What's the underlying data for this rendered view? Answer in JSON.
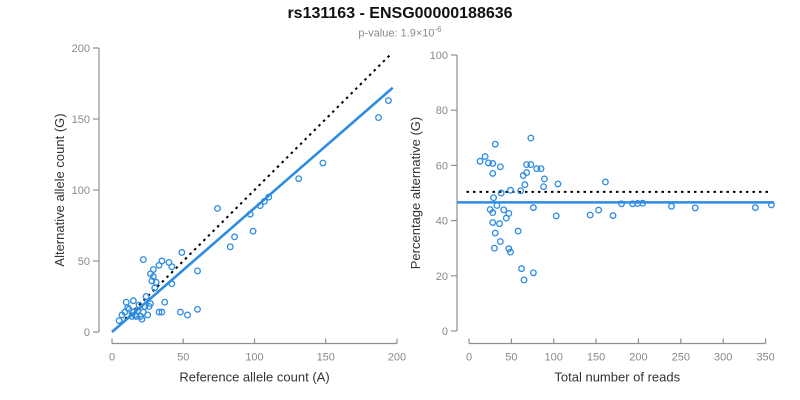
{
  "header": {
    "title": "rs131163 - ENSG00000188636",
    "subtitle_main": "p-value: 1.9×10",
    "subtitle_exp": "-6"
  },
  "colors": {
    "point": "#2E8BE2",
    "fit_line": "#2E8BE2",
    "reference_line": "#000000",
    "axis": "#8f8f8f",
    "tick_label": "#8a8a8a",
    "axis_title": "#333333"
  },
  "chart_data": [
    {
      "type": "scatter",
      "name": "allele-counts",
      "xlabel": "Reference allele count (A)",
      "ylabel": "Alternative allele count (G)",
      "xlim": [
        0,
        200
      ],
      "ylim": [
        0,
        200
      ],
      "xticks": [
        0,
        50,
        100,
        150,
        200
      ],
      "yticks": [
        0,
        50,
        100,
        150,
        200
      ],
      "grid": false,
      "points": [
        [
          5,
          8
        ],
        [
          7,
          12
        ],
        [
          9,
          14
        ],
        [
          10,
          21
        ],
        [
          11,
          17
        ],
        [
          12,
          16
        ],
        [
          14,
          11
        ],
        [
          15,
          22
        ],
        [
          15,
          14
        ],
        [
          16,
          12
        ],
        [
          17,
          11
        ],
        [
          18,
          15
        ],
        [
          19,
          19
        ],
        [
          20,
          11
        ],
        [
          21,
          9
        ],
        [
          22,
          51
        ],
        [
          22,
          14
        ],
        [
          23,
          18
        ],
        [
          24,
          25
        ],
        [
          25,
          12
        ],
        [
          26,
          18
        ],
        [
          27,
          41
        ],
        [
          27,
          20
        ],
        [
          28,
          36
        ],
        [
          29,
          44
        ],
        [
          29,
          39
        ],
        [
          30,
          31
        ],
        [
          31,
          35
        ],
        [
          33,
          47
        ],
        [
          33,
          14
        ],
        [
          35,
          50
        ],
        [
          35,
          14
        ],
        [
          37,
          21
        ],
        [
          40,
          49
        ],
        [
          42,
          46
        ],
        [
          42,
          34
        ],
        [
          48,
          14
        ],
        [
          49,
          56
        ],
        [
          53,
          12
        ],
        [
          60,
          43
        ],
        [
          60,
          16
        ],
        [
          74,
          87
        ],
        [
          83,
          60
        ],
        [
          86,
          67
        ],
        [
          97,
          83
        ],
        [
          99,
          71
        ],
        [
          104,
          89
        ],
        [
          107,
          92
        ],
        [
          110,
          95
        ],
        [
          131,
          108
        ],
        [
          148,
          119
        ],
        [
          187,
          151
        ],
        [
          194,
          163
        ]
      ],
      "lines": [
        {
          "name": "identity-line",
          "style": "dotted",
          "color": "#000000",
          "x1": 6,
          "y1": 6,
          "x2": 195,
          "y2": 195
        },
        {
          "name": "fit-line",
          "style": "solid",
          "color": "#2E8BE2",
          "x1": 0,
          "y1": 0,
          "x2": 197,
          "y2": 172
        }
      ]
    },
    {
      "type": "scatter",
      "name": "percentage-vs-coverage",
      "xlabel": "Total number of reads",
      "ylabel": "Percentage alternative (G)",
      "xlim": [
        0,
        360
      ],
      "ylim": [
        0,
        100
      ],
      "xticks": [
        0,
        50,
        100,
        150,
        200,
        250,
        300,
        350
      ],
      "yticks": [
        0,
        20,
        40,
        60,
        80,
        100
      ],
      "grid": false,
      "points": [
        [
          13,
          61.5
        ],
        [
          19,
          63.2
        ],
        [
          23,
          60.9
        ],
        [
          31,
          67.7
        ],
        [
          28,
          60.7
        ],
        [
          28,
          57.1
        ],
        [
          25,
          44.0
        ],
        [
          37,
          59.5
        ],
        [
          29,
          48.3
        ],
        [
          28,
          42.9
        ],
        [
          28,
          39.3
        ],
        [
          33,
          45.5
        ],
        [
          38,
          50.0
        ],
        [
          31,
          35.5
        ],
        [
          30,
          30.0
        ],
        [
          73,
          69.9
        ],
        [
          36,
          38.9
        ],
        [
          41,
          43.9
        ],
        [
          49,
          51.0
        ],
        [
          37,
          32.4
        ],
        [
          44,
          40.9
        ],
        [
          68,
          60.3
        ],
        [
          47,
          42.6
        ],
        [
          64,
          56.3
        ],
        [
          73,
          60.3
        ],
        [
          68,
          57.4
        ],
        [
          61,
          50.8
        ],
        [
          66,
          53.0
        ],
        [
          80,
          58.8
        ],
        [
          47,
          29.8
        ],
        [
          85,
          58.8
        ],
        [
          49,
          28.6
        ],
        [
          58,
          36.2
        ],
        [
          89,
          55.1
        ],
        [
          88,
          52.3
        ],
        [
          76,
          44.7
        ],
        [
          62,
          22.6
        ],
        [
          105,
          53.3
        ],
        [
          65,
          18.5
        ],
        [
          103,
          41.7
        ],
        [
          76,
          21.1
        ],
        [
          161,
          54.0
        ],
        [
          143,
          42.0
        ],
        [
          153,
          43.8
        ],
        [
          180,
          46.1
        ],
        [
          170,
          41.8
        ],
        [
          193,
          46.1
        ],
        [
          199,
          46.2
        ],
        [
          205,
          46.3
        ],
        [
          239,
          45.2
        ],
        [
          267,
          44.6
        ],
        [
          338,
          44.7
        ],
        [
          357,
          45.7
        ]
      ],
      "lines": [
        {
          "name": "expected-50pct-line",
          "style": "dotted",
          "color": "#000000",
          "x1": -3,
          "y1": 50.4,
          "x2": 356,
          "y2": 50.4
        },
        {
          "name": "fit-line",
          "style": "solid",
          "color": "#2E8BE2",
          "x1": -14,
          "y1": 46.6,
          "x2": 360,
          "y2": 46.6
        }
      ]
    }
  ]
}
